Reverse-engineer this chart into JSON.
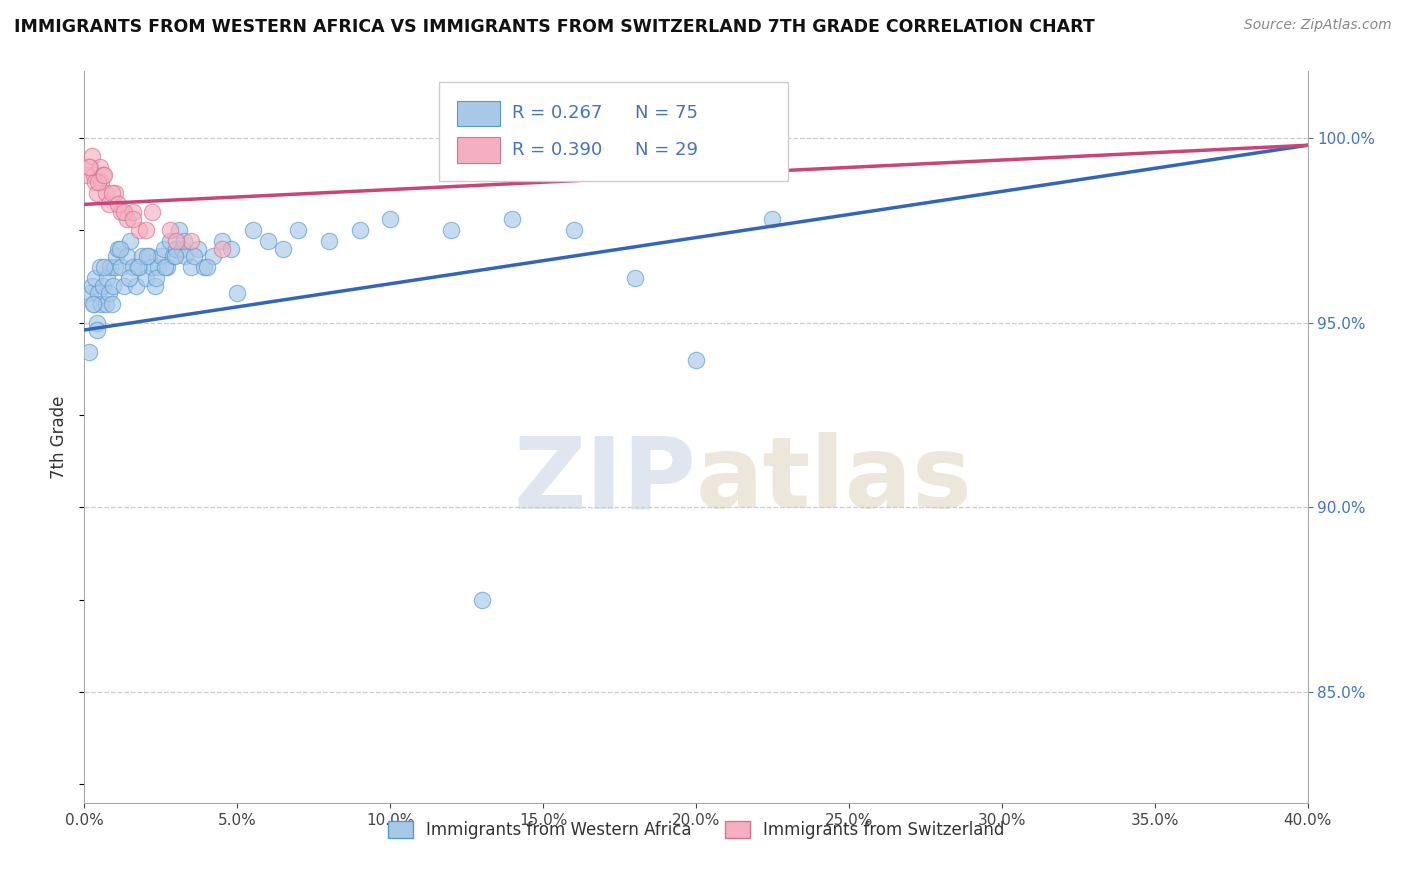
{
  "title": "IMMIGRANTS FROM WESTERN AFRICA VS IMMIGRANTS FROM SWITZERLAND 7TH GRADE CORRELATION CHART",
  "source": "Source: ZipAtlas.com",
  "ylabel": "7th Grade",
  "right_yticks": [
    85.0,
    90.0,
    95.0,
    100.0
  ],
  "xlim": [
    0.0,
    40.0
  ],
  "ylim": [
    82.0,
    101.8
  ],
  "legend_line1_r": "R = 0.267",
  "legend_line1_n": "N = 75",
  "legend_line2_r": "R = 0.390",
  "legend_line2_n": "N = 29",
  "blue_color": "#a8c8e8",
  "blue_edge_color": "#5599cc",
  "blue_line_color": "#3366bb",
  "pink_color": "#f4b0c0",
  "pink_edge_color": "#d47090",
  "pink_line_color": "#cc4477",
  "blue_trend_x0": 0.0,
  "blue_trend_x1": 40.0,
  "blue_trend_y0": 94.8,
  "blue_trend_y1": 99.8,
  "pink_trend_x0": 0.0,
  "pink_trend_x1": 40.0,
  "pink_trend_y0": 98.2,
  "pink_trend_y1": 99.8,
  "watermark_zip": "ZIP",
  "watermark_atlas": "atlas",
  "legend_label_blue": "Immigrants from Western Africa",
  "legend_label_pink": "Immigrants from Switzerland",
  "marker_size": 140,
  "grid_color": "#cccccc",
  "title_fontsize": 12.5,
  "source_fontsize": 10,
  "right_axis_label_color": "#4472c4",
  "xticks": [
    0,
    5,
    10,
    15,
    20,
    25,
    30,
    35,
    40
  ],
  "blue_scatter_x": [
    0.2,
    0.25,
    0.3,
    0.35,
    0.4,
    0.45,
    0.5,
    0.55,
    0.6,
    0.7,
    0.75,
    0.8,
    0.85,
    0.9,
    0.95,
    1.0,
    1.05,
    1.1,
    1.2,
    1.3,
    1.4,
    1.5,
    1.6,
    1.7,
    1.8,
    1.9,
    2.0,
    2.1,
    2.2,
    2.3,
    2.4,
    2.5,
    2.6,
    2.7,
    2.8,
    2.9,
    3.0,
    3.1,
    3.2,
    3.3,
    3.5,
    3.7,
    3.9,
    4.2,
    4.5,
    4.8,
    5.0,
    5.5,
    6.0,
    6.5,
    7.0,
    8.0,
    9.0,
    10.0,
    12.0,
    14.0,
    16.0,
    18.0,
    20.0,
    22.5,
    0.15,
    0.28,
    0.42,
    0.65,
    1.15,
    1.45,
    1.75,
    2.05,
    2.35,
    2.65,
    2.95,
    3.25,
    3.6,
    4.0,
    13.0
  ],
  "blue_scatter_y": [
    95.8,
    96.0,
    95.5,
    96.2,
    95.0,
    95.8,
    96.5,
    95.5,
    96.0,
    95.5,
    96.2,
    95.8,
    96.5,
    95.5,
    96.0,
    96.5,
    96.8,
    97.0,
    96.5,
    96.0,
    96.8,
    97.2,
    96.5,
    96.0,
    96.5,
    96.8,
    96.2,
    96.8,
    96.5,
    96.0,
    96.5,
    96.8,
    97.0,
    96.5,
    97.2,
    96.8,
    97.0,
    97.5,
    97.0,
    96.8,
    96.5,
    97.0,
    96.5,
    96.8,
    97.2,
    97.0,
    95.8,
    97.5,
    97.2,
    97.0,
    97.5,
    97.2,
    97.5,
    97.8,
    97.5,
    97.8,
    97.5,
    96.2,
    94.0,
    97.8,
    94.2,
    95.5,
    94.8,
    96.5,
    97.0,
    96.2,
    96.5,
    96.8,
    96.2,
    96.5,
    96.8,
    97.2,
    96.8,
    96.5,
    87.5
  ],
  "pink_scatter_x": [
    0.1,
    0.2,
    0.25,
    0.3,
    0.35,
    0.4,
    0.5,
    0.55,
    0.6,
    0.7,
    0.8,
    1.0,
    1.2,
    1.4,
    1.6,
    1.8,
    2.2,
    2.8,
    3.5,
    4.5,
    0.15,
    0.45,
    0.65,
    0.9,
    1.1,
    1.3,
    1.6,
    2.0,
    3.0
  ],
  "pink_scatter_y": [
    99.0,
    99.2,
    99.5,
    99.0,
    98.8,
    98.5,
    99.2,
    98.8,
    99.0,
    98.5,
    98.2,
    98.5,
    98.0,
    97.8,
    98.0,
    97.5,
    98.0,
    97.5,
    97.2,
    97.0,
    99.2,
    98.8,
    99.0,
    98.5,
    98.2,
    98.0,
    97.8,
    97.5,
    97.2
  ]
}
